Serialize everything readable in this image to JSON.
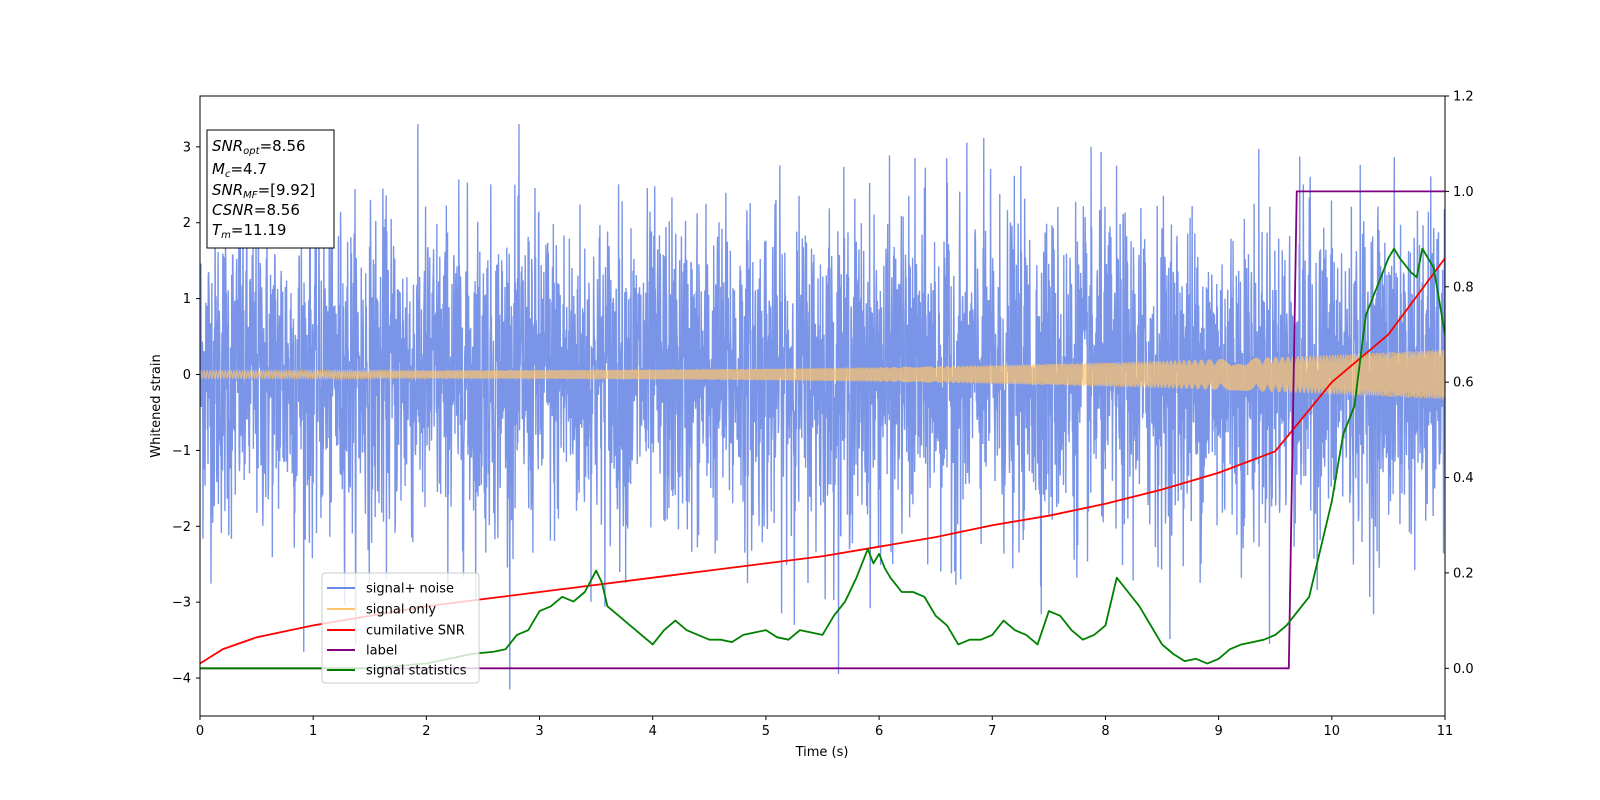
{
  "chart_data": {
    "type": "line",
    "xlabel": "Time (s)",
    "ylabel": "Whitened strain",
    "xlim": [
      0,
      11
    ],
    "ylim_left": [
      -4.5,
      3.67
    ],
    "ylim_right": [
      -0.1,
      1.2
    ],
    "x_ticks": [
      0,
      1,
      2,
      3,
      4,
      5,
      6,
      7,
      8,
      9,
      10,
      11
    ],
    "y_ticks_left": [
      -4,
      -3,
      -2,
      -1,
      0,
      1,
      2,
      3
    ],
    "y_ticks_right": [
      0.0,
      0.2,
      0.4,
      0.6,
      0.8,
      1.0,
      1.2
    ],
    "grid": false,
    "legend_position": "lower-left",
    "stats_box": {
      "position": "top-left",
      "lines": [
        {
          "base": "SNR",
          "sub": "opt",
          "value": "=8.56"
        },
        {
          "base": "M",
          "sub": "c",
          "value": "=4.7"
        },
        {
          "base": "SNR",
          "sub": "MF",
          "value": "=[9.92]"
        },
        {
          "base": "CSNR",
          "sub": "",
          "value": "=8.56"
        },
        {
          "base": "T",
          "sub": "m",
          "value": "=11.19"
        }
      ]
    },
    "series": [
      {
        "name": "signal+ noise",
        "axis": "left",
        "color": "#6b8ae6",
        "kind": "noise",
        "envelope_std": 1.0,
        "range": [
          -4.15,
          3.3
        ]
      },
      {
        "name": "signal only",
        "axis": "left",
        "color": "#ffc46b",
        "kind": "chirp",
        "amplitude_start": 0.05,
        "amplitude_end": 0.33
      },
      {
        "name": "cumilative SNR",
        "axis": "right",
        "color": "#ff0000",
        "x": [
          0,
          0.2,
          0.5,
          1,
          1.5,
          2,
          2.5,
          3,
          3.5,
          4,
          4.5,
          5,
          5.5,
          6,
          6.5,
          7,
          7.5,
          8,
          8.5,
          9,
          9.5,
          10,
          10.5,
          11
        ],
        "y": [
          0.01,
          0.04,
          0.065,
          0.09,
          0.11,
          0.13,
          0.145,
          0.16,
          0.175,
          0.19,
          0.205,
          0.22,
          0.235,
          0.255,
          0.275,
          0.3,
          0.32,
          0.345,
          0.375,
          0.41,
          0.455,
          0.6,
          0.7,
          0.86
        ]
      },
      {
        "name": "label",
        "axis": "right",
        "color": "#800080",
        "x": [
          0,
          9.62,
          9.69,
          11
        ],
        "y": [
          0,
          0,
          1,
          1
        ]
      },
      {
        "name": "signal statistics",
        "axis": "right",
        "color": "#008000",
        "x": [
          0,
          0.5,
          1,
          1.5,
          2,
          2.2,
          2.4,
          2.6,
          2.7,
          2.8,
          2.9,
          3.0,
          3.1,
          3.2,
          3.3,
          3.4,
          3.5,
          3.55,
          3.6,
          3.7,
          3.8,
          3.9,
          4.0,
          4.1,
          4.2,
          4.3,
          4.4,
          4.5,
          4.6,
          4.7,
          4.8,
          4.9,
          5.0,
          5.1,
          5.2,
          5.3,
          5.4,
          5.5,
          5.6,
          5.7,
          5.8,
          5.9,
          5.95,
          6.0,
          6.05,
          6.1,
          6.2,
          6.3,
          6.4,
          6.5,
          6.6,
          6.7,
          6.8,
          6.9,
          7.0,
          7.1,
          7.2,
          7.3,
          7.4,
          7.5,
          7.6,
          7.7,
          7.8,
          7.9,
          8.0,
          8.1,
          8.2,
          8.3,
          8.4,
          8.5,
          8.6,
          8.7,
          8.8,
          8.9,
          9.0,
          9.1,
          9.2,
          9.3,
          9.4,
          9.5,
          9.6,
          9.7,
          9.8,
          9.9,
          10.0,
          10.1,
          10.2,
          10.3,
          10.4,
          10.5,
          10.55,
          10.6,
          10.7,
          10.75,
          10.8,
          10.9,
          11.0
        ],
        "y": [
          0,
          0.0,
          0.0,
          0.0,
          0.01,
          0.02,
          0.03,
          0.035,
          0.04,
          0.07,
          0.08,
          0.12,
          0.13,
          0.15,
          0.14,
          0.16,
          0.205,
          0.18,
          0.13,
          0.11,
          0.09,
          0.07,
          0.05,
          0.08,
          0.1,
          0.08,
          0.07,
          0.06,
          0.06,
          0.055,
          0.07,
          0.075,
          0.08,
          0.065,
          0.06,
          0.08,
          0.075,
          0.07,
          0.11,
          0.14,
          0.19,
          0.25,
          0.22,
          0.24,
          0.21,
          0.19,
          0.16,
          0.16,
          0.15,
          0.11,
          0.09,
          0.05,
          0.06,
          0.06,
          0.07,
          0.1,
          0.08,
          0.07,
          0.05,
          0.12,
          0.11,
          0.08,
          0.06,
          0.07,
          0.09,
          0.19,
          0.16,
          0.13,
          0.09,
          0.05,
          0.03,
          0.015,
          0.02,
          0.01,
          0.02,
          0.04,
          0.05,
          0.055,
          0.06,
          0.07,
          0.09,
          0.12,
          0.15,
          0.25,
          0.35,
          0.49,
          0.55,
          0.74,
          0.8,
          0.86,
          0.88,
          0.86,
          0.83,
          0.82,
          0.88,
          0.84,
          0.7
        ]
      }
    ]
  }
}
